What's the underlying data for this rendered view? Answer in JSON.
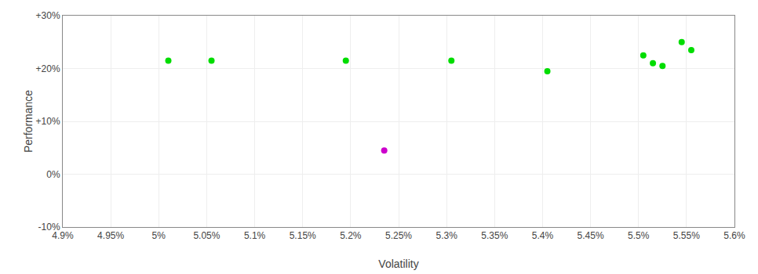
{
  "chart_data": {
    "type": "scatter",
    "x_label": "Volatility",
    "y_label": "Performance",
    "marker": "circle",
    "grid": true,
    "xlim": [
      4.9,
      5.6
    ],
    "ylim": [
      -10,
      30
    ],
    "xticks": [
      {
        "value": 4.9,
        "label": "4.9%"
      },
      {
        "value": 4.95,
        "label": "4.95%"
      },
      {
        "value": 5.0,
        "label": "5%"
      },
      {
        "value": 5.05,
        "label": "5.05%"
      },
      {
        "value": 5.1,
        "label": "5.1%"
      },
      {
        "value": 5.15,
        "label": "5.15%"
      },
      {
        "value": 5.2,
        "label": "5.2%"
      },
      {
        "value": 5.25,
        "label": "5.25%"
      },
      {
        "value": 5.3,
        "label": "5.3%"
      },
      {
        "value": 5.35,
        "label": "5.35%"
      },
      {
        "value": 5.4,
        "label": "5.4%"
      },
      {
        "value": 5.45,
        "label": "5.45%"
      },
      {
        "value": 5.5,
        "label": "5.5%"
      },
      {
        "value": 5.55,
        "label": "5.55%"
      },
      {
        "value": 5.6,
        "label": "5.6%"
      }
    ],
    "yticks": [
      {
        "value": -10,
        "label": "-10%"
      },
      {
        "value": 0,
        "label": "0%"
      },
      {
        "value": 10,
        "label": "+10%"
      },
      {
        "value": 20,
        "label": "+20%"
      },
      {
        "value": 30,
        "label": "+30%"
      }
    ],
    "series": [
      {
        "color": "#00dd00",
        "x": [
          5.01,
          5.055,
          5.195,
          5.305,
          5.405,
          5.505,
          5.515,
          5.525,
          5.545,
          5.555
        ],
        "values": [
          21.5,
          21.5,
          21.5,
          21.5,
          19.5,
          22.5,
          21.0,
          20.5,
          25.0,
          23.5
        ]
      },
      {
        "color": "#cc00cc",
        "x": [
          5.235
        ],
        "values": [
          4.5
        ]
      }
    ]
  }
}
